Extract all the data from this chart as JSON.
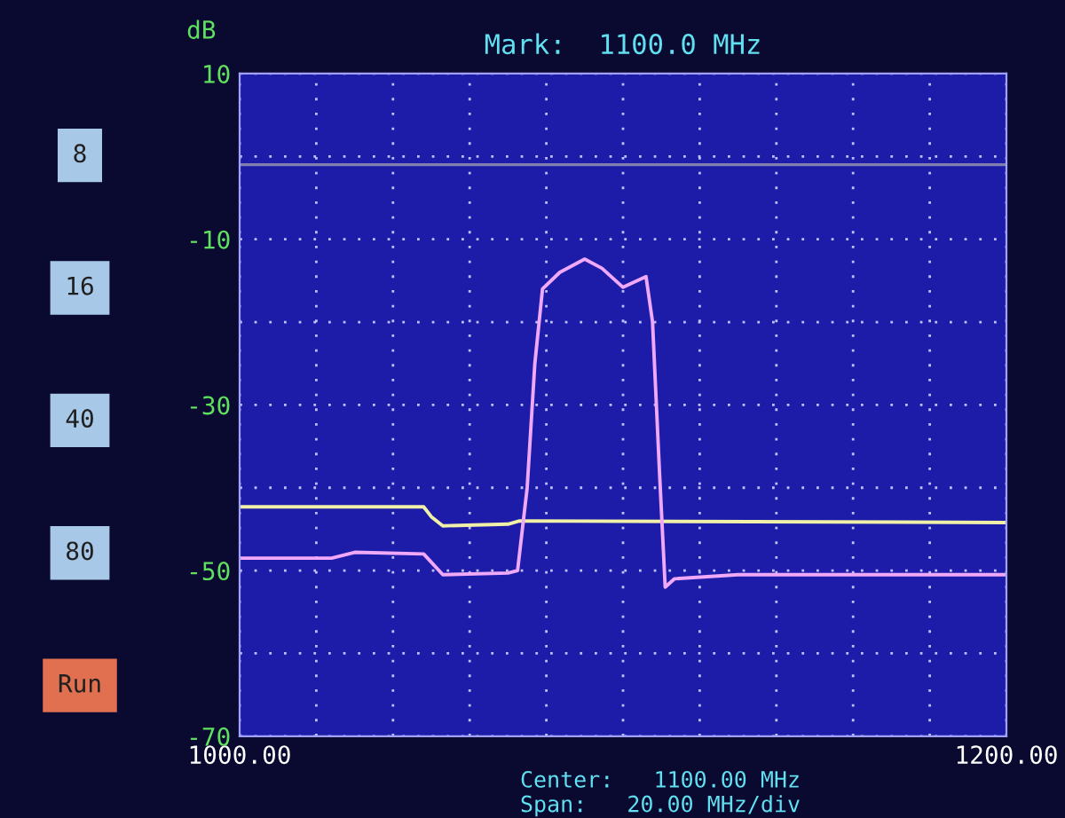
{
  "chart_data": {
    "type": "line",
    "title": "Mark:  1100.0 MHz",
    "ylabel": "dB",
    "xlim": [
      1000,
      1200
    ],
    "ylim": [
      -70,
      10
    ],
    "xticks": [
      {
        "value": 1000,
        "label": "1000.00"
      },
      {
        "value": 1020,
        "label": null
      },
      {
        "value": 1040,
        "label": null
      },
      {
        "value": 1060,
        "label": null
      },
      {
        "value": 1080,
        "label": null
      },
      {
        "value": 1100,
        "label": null
      },
      {
        "value": 1120,
        "label": null
      },
      {
        "value": 1140,
        "label": null
      },
      {
        "value": 1160,
        "label": null
      },
      {
        "value": 1180,
        "label": null
      },
      {
        "value": 1200,
        "label": "1200.00"
      }
    ],
    "yticks": [
      10,
      {
        "value": 0,
        "label": null
      },
      -10,
      {
        "value": -20,
        "label": null
      },
      -30,
      {
        "value": -40,
        "label": null
      },
      -50,
      {
        "value": -60,
        "label": null
      },
      -70
    ],
    "grid": true,
    "ref_lines": [
      {
        "axis": "y",
        "value": -1,
        "label": null,
        "color": "#8080b0"
      }
    ],
    "series": [
      {
        "color": "#f0f0a8",
        "x": [
          1000,
          1048,
          1050,
          1053,
          1070,
          1073,
          1200
        ],
        "values": [
          -42.3,
          -42.3,
          -43.5,
          -44.6,
          -44.4,
          -44.0,
          -44.2
        ]
      },
      {
        "color": "#f0a8f8",
        "x": [
          1000,
          1024,
          1030,
          1048,
          1053,
          1070,
          1072.5,
          1075,
          1077,
          1079,
          1083.5,
          1090,
          1094.5,
          1100,
          1106,
          1107.7,
          1109.5,
          1111,
          1113.4,
          1130,
          1200
        ],
        "values": [
          -48.5,
          -48.5,
          -47.8,
          -48,
          -50.5,
          -50.3,
          -50,
          -40,
          -25,
          -16,
          -14,
          -12.4,
          -13.5,
          -15.8,
          -14.5,
          -20,
          -38,
          -52,
          -51,
          -50.5,
          -50.5
        ]
      }
    ],
    "annotations": [
      "Center:   1100.00 MHz",
      "Span:   20.00 MHz/div",
      "8",
      "16",
      "40",
      "80",
      "Run"
    ]
  }
}
